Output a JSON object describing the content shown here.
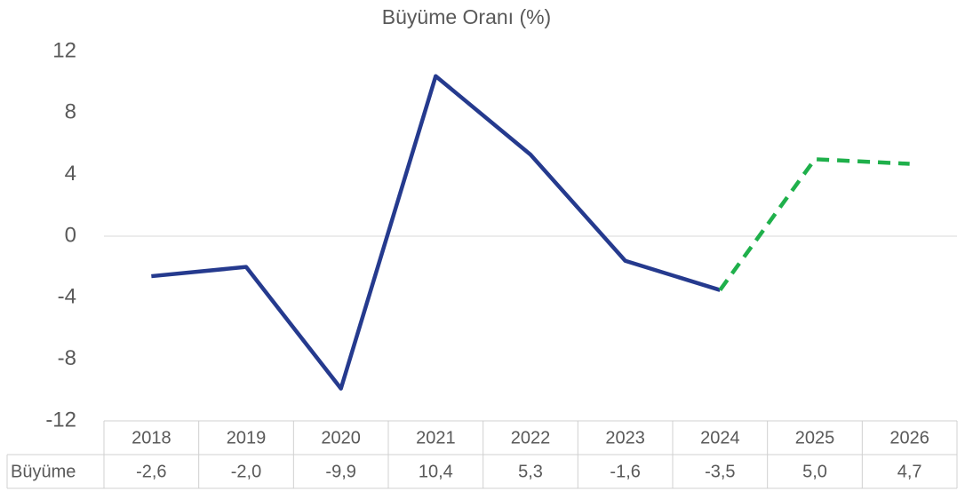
{
  "chart_data": {
    "type": "line",
    "title": "Büyüme Oranı (%)",
    "categories": [
      "2018",
      "2019",
      "2020",
      "2021",
      "2022",
      "2023",
      "2024",
      "2025",
      "2026"
    ],
    "series": [
      {
        "name": "Büyüme",
        "color": "#253a8e",
        "forecast_color": "#1fb04b",
        "forecast_start": 6,
        "values": [
          -2.6,
          -2.0,
          -9.9,
          10.4,
          5.3,
          -1.6,
          -3.5,
          5.0,
          4.7
        ],
        "value_labels": [
          "-2,6",
          "-2,0",
          "-9,9",
          "10,4",
          "5,3",
          "-1,6",
          "-3,5",
          "5,0",
          "4,7"
        ]
      }
    ],
    "ylim": [
      -12,
      12
    ],
    "yticks": [
      -12,
      -8,
      -4,
      0,
      4,
      8,
      12
    ],
    "grid": false,
    "data_table": true
  }
}
